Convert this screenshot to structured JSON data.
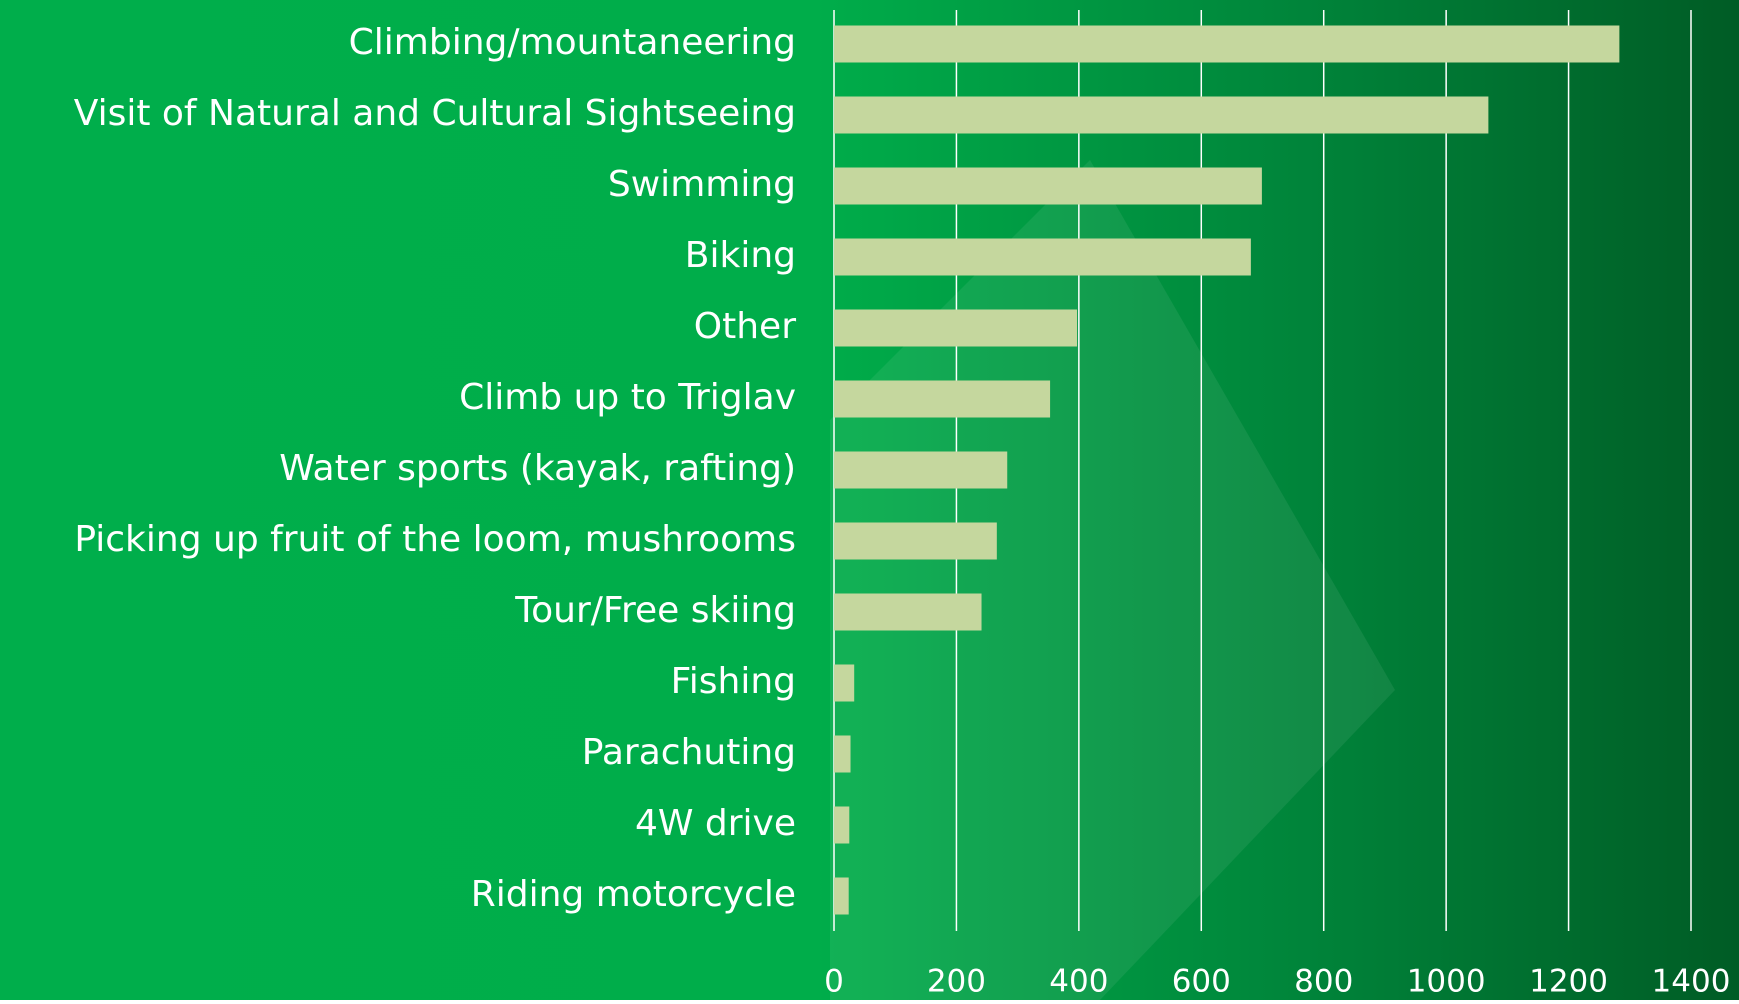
{
  "chart_data": {
    "type": "bar",
    "orientation": "horizontal",
    "categories": [
      "Climbing/mountaneering",
      "Visit of Natural and Cultural Sightseeing",
      "Swimming",
      "Biking",
      "Other",
      "Climb up to Triglav",
      "Water sports (kayak, rafting)",
      "Picking up fruit of the loom, mushrooms",
      "Tour/Free skiing",
      "Fishing",
      "Parachuting",
      "4W drive",
      "Riding motorcycle"
    ],
    "values": [
      1283,
      1069,
      699,
      681,
      397,
      353,
      283,
      266,
      241,
      33,
      27,
      25,
      24
    ],
    "color": "#c5d79e",
    "xlim": [
      0,
      1400
    ],
    "xticks": [
      0,
      200,
      400,
      600,
      800,
      1000,
      1200,
      1400
    ],
    "grid": true
  }
}
